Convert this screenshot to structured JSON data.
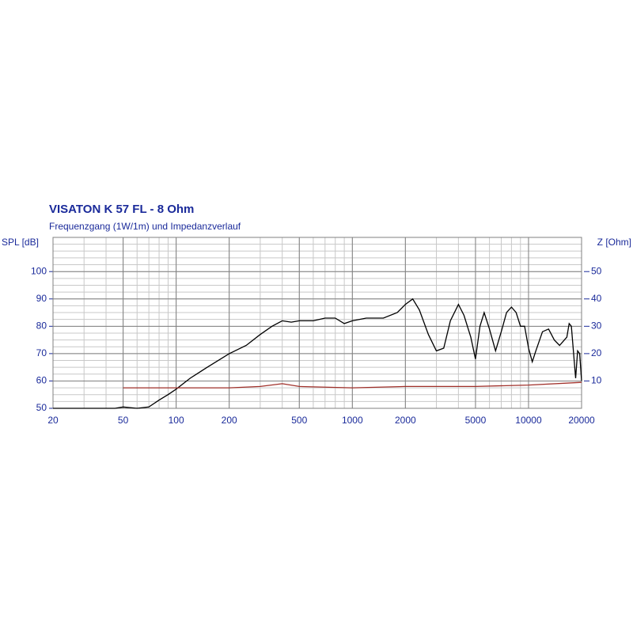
{
  "chart_data": {
    "type": "line",
    "title": "VISATON K 57 FL - 8 Ohm",
    "subtitle": "Frequenzgang (1W/1m) und Impedanzverlauf",
    "y_label": "SPL [dB]",
    "y2_label": "Z [Ohm]",
    "log_x": true,
    "grid": true,
    "xlim": [
      20,
      20000
    ],
    "xticks": [
      20,
      50,
      100,
      200,
      500,
      1000,
      2000,
      5000,
      10000,
      20000
    ],
    "ylim": [
      50,
      112.5
    ],
    "yticks": [
      50,
      60,
      70,
      80,
      90,
      100
    ],
    "y2lim": [
      0,
      62.5
    ],
    "y2ticks": [
      10,
      20,
      30,
      40,
      50
    ],
    "series": [
      {
        "name": "SPL",
        "color": "#000000",
        "x": [
          20,
          45,
          50,
          60,
          70,
          80,
          90,
          100,
          120,
          150,
          200,
          250,
          300,
          350,
          400,
          450,
          500,
          600,
          700,
          800,
          900,
          1000,
          1200,
          1500,
          1800,
          2000,
          2200,
          2400,
          2700,
          3000,
          3300,
          3600,
          4000,
          4300,
          4700,
          5000,
          5300,
          5600,
          6000,
          6500,
          7000,
          7500,
          8000,
          8500,
          9000,
          9500,
          10000,
          10500,
          11000,
          12000,
          13000,
          14000,
          15000,
          16500,
          17000,
          17500,
          18500,
          19000,
          19500,
          20000
        ],
        "values": [
          50,
          50,
          50.5,
          50,
          50.5,
          53,
          55,
          57,
          61,
          65,
          70,
          73,
          77,
          80,
          82,
          81.5,
          82,
          82,
          83,
          83,
          81,
          82,
          83,
          83,
          85,
          88,
          90,
          86,
          77,
          71,
          72,
          82,
          88,
          84,
          76,
          68,
          80,
          85,
          79,
          71,
          78,
          85,
          87,
          85,
          80,
          80,
          72,
          67,
          71,
          78,
          79,
          75,
          73,
          76,
          81,
          80,
          61,
          71,
          70,
          60
        ]
      },
      {
        "name": "Z",
        "color": "#a0302a",
        "axis": "y2",
        "x": [
          50,
          200,
          300,
          400,
          500,
          1000,
          2000,
          3000,
          5000,
          10000,
          20000
        ],
        "values": [
          7.5,
          7.5,
          8,
          9,
          8,
          7.5,
          8,
          8,
          8,
          8.5,
          9.5
        ]
      }
    ]
  }
}
